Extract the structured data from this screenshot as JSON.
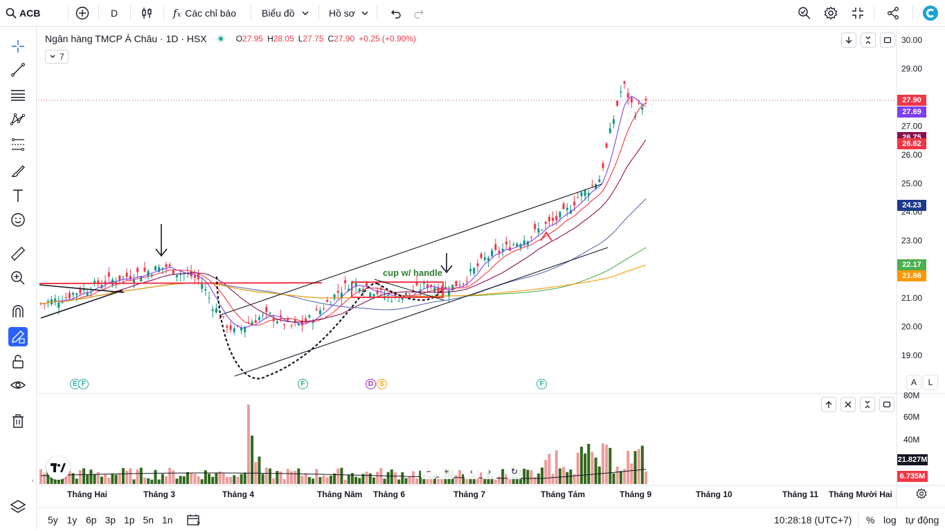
{
  "topbar": {
    "symbol": "ACB",
    "interval": "D",
    "indicators_label": "Các chỉ báo",
    "chart_type_label": "Biểu đồ",
    "profile_label": "Hồ sơ"
  },
  "legend": {
    "title": "Ngân hàng TMCP Á Châu · 1D · HSX",
    "o_label": "O",
    "o": "27.95",
    "h_label": "H",
    "h": "28.05",
    "l_label": "L",
    "l": "27.75",
    "c_label": "C",
    "c": "27.90",
    "change": "+0.25 (+0.90%)",
    "indicator_count": "7"
  },
  "price_axis": [
    "30.00",
    "29.00",
    "27.00",
    "26.00",
    "25.00",
    "24.00",
    "23.00",
    "22.00",
    "21.00",
    "20.00",
    "19.00"
  ],
  "price_labels": [
    {
      "text": "27.90",
      "color": "#f23645"
    },
    {
      "text": "27.69",
      "color": "#7e3ff2"
    },
    {
      "text": "26.75",
      "color": "#880e4f"
    },
    {
      "text": "26.62",
      "color": "#f23645"
    },
    {
      "text": "24.23",
      "color": "#1e3a8a"
    },
    {
      "text": "22.17",
      "color": "#4caf50"
    },
    {
      "text": "21.86",
      "color": "#ff9800"
    }
  ],
  "volume_axis": [
    "80M",
    "60M",
    "40M"
  ],
  "volume_labels": [
    {
      "text": "21.827M",
      "color": "#131722"
    },
    {
      "text": "6.735M",
      "color": "#f23645"
    }
  ],
  "time_axis": [
    "Tháng Hai",
    "Tháng 3",
    "Tháng 4",
    "Tháng Năm",
    "Tháng 6",
    "Tháng 7",
    "Tháng Tám",
    "Tháng 9",
    "Tháng 10",
    "Tháng 11",
    "Tháng Mười Hai"
  ],
  "annotation": "cup w/ handle",
  "scale_buttons": {
    "a": "A",
    "l": "L"
  },
  "bottombar": {
    "ranges": [
      "5y",
      "1y",
      "6p",
      "3p",
      "1p",
      "5n",
      "1n"
    ],
    "time": "10:28:18 (UTC+7)",
    "percent": "%",
    "log": "log",
    "auto": "tự động"
  },
  "chart_data": {
    "type": "candlestick",
    "series_name": "ACB",
    "ylim": [
      18.5,
      30.2
    ],
    "approx_closes": [
      20.8,
      20.9,
      21.0,
      21.2,
      21.3,
      21.5,
      21.6,
      21.7,
      21.8,
      21.9,
      22.0,
      22.1,
      21.9,
      21.8,
      21.6,
      20.8,
      20.2,
      19.8,
      20.1,
      20.3,
      20.4,
      20.2,
      20.0,
      20.1,
      20.4,
      20.8,
      21.2,
      21.5,
      21.5,
      21.3,
      21.1,
      21.0,
      21.1,
      21.3,
      21.5,
      21.3,
      21.4,
      21.6,
      22.0,
      22.4,
      22.6,
      22.8,
      23.0,
      23.2,
      23.5,
      23.7,
      24.0,
      24.5,
      24.8,
      25.2,
      27.0,
      28.5,
      27.5,
      27.9
    ],
    "volume_last": "6.735M",
    "volume_ma": "21.827M"
  }
}
